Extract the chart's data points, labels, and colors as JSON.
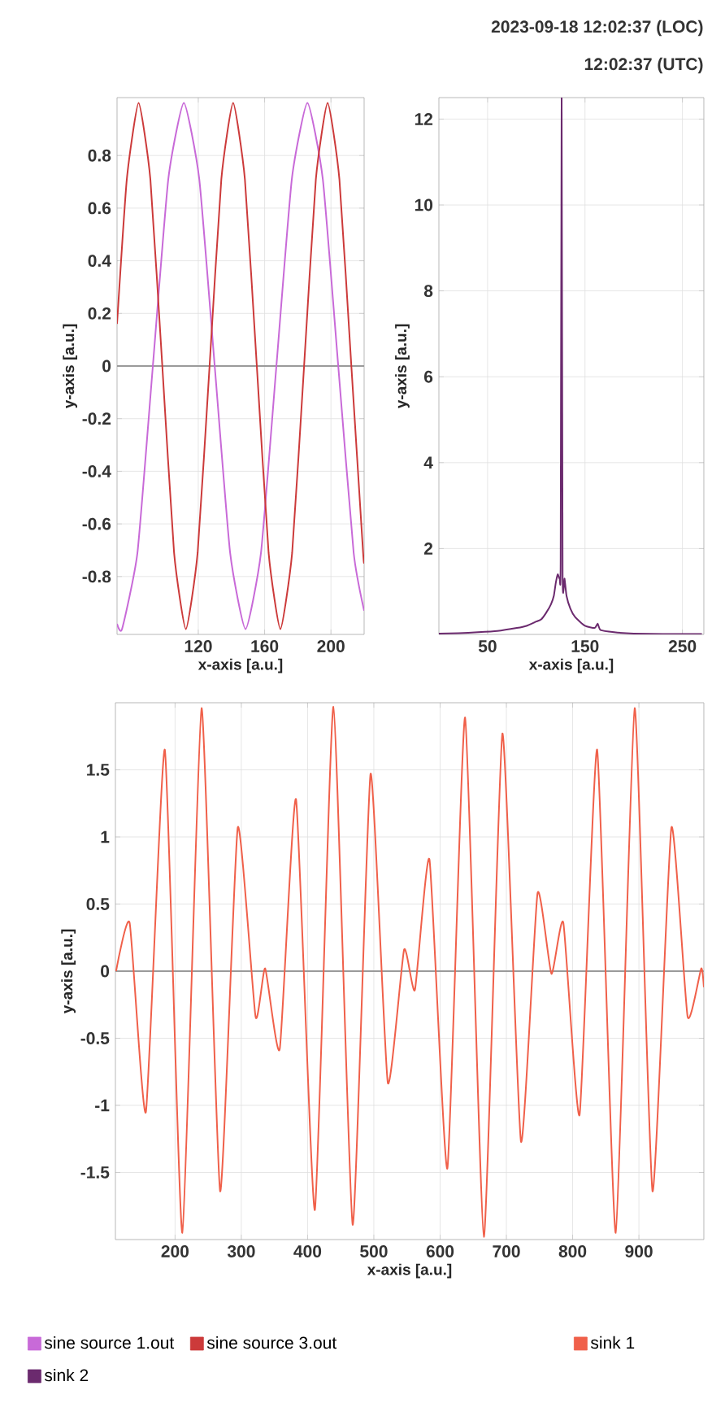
{
  "chart_data": [
    {
      "type": "line",
      "xlabel": "x-axis [a.u.]",
      "ylabel": "y-axis [a.u.]",
      "xlim": [
        71,
        220
      ],
      "ylim": [
        -1.02,
        1.02
      ],
      "xticks": [
        120,
        160,
        200
      ],
      "yticks": [
        -0.8,
        -0.6,
        -0.4,
        -0.2,
        0,
        0.2,
        0.4,
        0.6,
        0.8
      ],
      "grid": true,
      "legend": "bottom",
      "ref_lines": [
        {
          "axis": "y",
          "value": 0,
          "color": "#9a9a9a"
        }
      ],
      "series": [
        {
          "name": "sine source 1.out",
          "color": "#c86ad8",
          "x": [
            71,
            74,
            83.3,
            92.6,
            101.9,
            111.3,
            120.6,
            129.9,
            139.2,
            148.5,
            157.8,
            167.1,
            176.4,
            185.8,
            195.1,
            204.4,
            213.7,
            220
          ],
          "values": [
            -0.98,
            -1,
            -0.71,
            0,
            0.71,
            1,
            0.71,
            0,
            -0.71,
            -1,
            -0.71,
            0,
            0.71,
            1,
            0.71,
            0,
            -0.71,
            -0.93
          ]
        },
        {
          "name": "sine source 3.out",
          "color": "#cc3a3a",
          "x": [
            71,
            76.9,
            84,
            91.1,
            98.3,
            105.4,
            112.5,
            119.6,
            126.8,
            133.9,
            141,
            148.1,
            155.3,
            162.4,
            169.5,
            176.6,
            183.8,
            190.9,
            198,
            205.1,
            212.3,
            219.4,
            220
          ],
          "values": [
            0.16,
            0.71,
            1,
            0.71,
            0,
            -0.71,
            -1,
            -0.71,
            0,
            0.71,
            1,
            0.71,
            0,
            -0.71,
            -1,
            -0.71,
            0,
            0.71,
            1,
            0.71,
            0,
            -0.71,
            -0.74
          ]
        }
      ]
    },
    {
      "type": "line",
      "xlabel": "x-axis [a.u.]",
      "ylabel": "y-axis [a.u.]",
      "xlim": [
        0,
        272
      ],
      "ylim": [
        0,
        12.5
      ],
      "xticks": [
        50,
        150,
        250
      ],
      "yticks": [
        2,
        4,
        6,
        8,
        10,
        12
      ],
      "grid": true,
      "legend": "bottom",
      "annotations": [
        "2023-09-18 12:02:37 (LOC)",
        "12:02:37 (UTC)"
      ],
      "series": [
        {
          "name": "sink 2",
          "color": "#6b2a6e",
          "x": [
            0,
            20,
            40,
            60,
            80,
            90,
            100,
            105,
            110,
            115,
            118,
            120,
            122,
            124,
            125,
            126,
            127,
            129,
            131,
            135,
            140,
            150,
            160,
            163,
            166,
            180,
            200,
            230,
            270
          ],
          "values": [
            0.02,
            0.03,
            0.05,
            0.08,
            0.15,
            0.2,
            0.3,
            0.35,
            0.5,
            0.7,
            0.9,
            1.2,
            1.4,
            1.3,
            1.7,
            12.5,
            1.4,
            1.3,
            0.9,
            0.6,
            0.4,
            0.2,
            0.15,
            0.25,
            0.1,
            0.05,
            0.02,
            0.01,
            0.01
          ]
        }
      ]
    },
    {
      "type": "line",
      "xlabel": "x-axis [a.u.]",
      "ylabel": "y-axis [a.u.]",
      "xlim": [
        110,
        998
      ],
      "ylim": [
        -2,
        2
      ],
      "xticks": [
        200,
        300,
        400,
        500,
        600,
        700,
        800,
        900
      ],
      "yticks": [
        -1.5,
        -1,
        -0.5,
        0,
        0.5,
        1,
        1.5
      ],
      "grid": true,
      "legend": "bottom",
      "ref_lines": [
        {
          "axis": "y",
          "value": 0,
          "color": "#9a9a9a"
        }
      ],
      "series": [
        {
          "name": "sink 1",
          "color": "#f0604a",
          "x": [
            111,
            131.5,
            156,
            184.6,
            211,
            240,
            268,
            294.6,
            321.5,
            336,
            358,
            382.6,
            411,
            439,
            468,
            495,
            521,
            545.6,
            562,
            584,
            611,
            637.7,
            666,
            694,
            722,
            747,
            768,
            786,
            810.5,
            837,
            865,
            893.6,
            920.5,
            949,
            973.5,
            994,
            998
          ],
          "values": [
            0,
            0.36,
            -1.05,
            1.65,
            -1.95,
            1.96,
            -1.64,
            1.07,
            -0.34,
            0.02,
            -0.58,
            1.28,
            -1.78,
            1.97,
            -1.89,
            1.47,
            -0.83,
            0.16,
            -0.14,
            0.83,
            -1.47,
            1.89,
            -1.98,
            1.77,
            -1.27,
            0.58,
            -0.02,
            0.36,
            -1.07,
            1.65,
            -1.95,
            1.96,
            -1.64,
            1.07,
            -0.34,
            0.02,
            -0.12
          ]
        }
      ]
    }
  ]
}
